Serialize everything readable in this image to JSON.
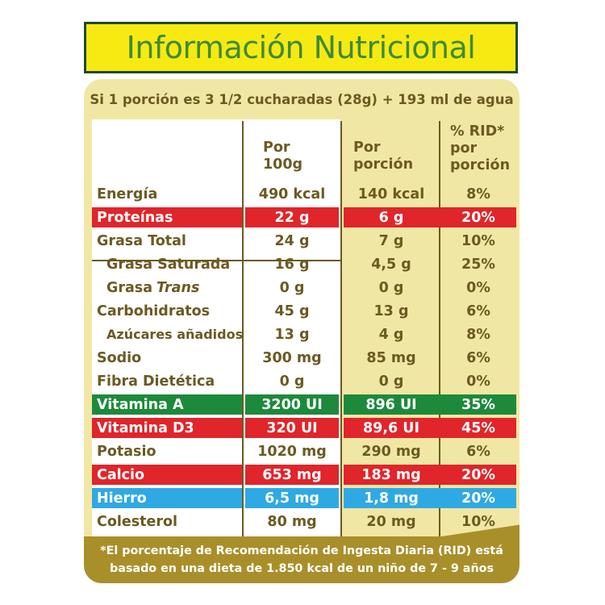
{
  "title": "Información Nutricional",
  "serving": "Si 1 porción es 3 1/2 cucharadas (28g) + 193 ml de agua",
  "headers": {
    "per100_line1": "Por",
    "per100_line2": "100g",
    "perportion_line1": "Por",
    "perportion_line2": "porción",
    "rid_line1": "% RID*",
    "rid_line2": "por",
    "rid_line3": "porción"
  },
  "colors": {
    "red": "#e0252b",
    "green": "#1d8a3b",
    "blue": "#2fa9e3",
    "title_yellow": "#f6ea12",
    "panel": "#f1e7a4",
    "footer": "#a98f2a"
  },
  "rows": [
    {
      "name": "Energía",
      "indent": false,
      "per100": "490 kcal",
      "portion": "140 kcal",
      "rid": "8%",
      "highlight": ""
    },
    {
      "name": "Proteínas",
      "indent": false,
      "per100": "22 g",
      "portion": "6 g",
      "rid": "20%",
      "highlight": "red"
    },
    {
      "name": "Grasa Total",
      "indent": false,
      "per100": "24 g",
      "portion": "7 g",
      "rid": "10%",
      "highlight": ""
    },
    {
      "name": "Grasa Saturada",
      "indent": true,
      "per100": "16 g",
      "portion": "4,5 g",
      "rid": "25%",
      "highlight": ""
    },
    {
      "name": "Grasa ",
      "name_italic": "Trans",
      "indent": true,
      "per100": "0 g",
      "portion": "0 g",
      "rid": "0%",
      "highlight": ""
    },
    {
      "name": "Carbohidratos",
      "indent": false,
      "per100": "45 g",
      "portion": "13 g",
      "rid": "6%",
      "highlight": ""
    },
    {
      "name": "Azúcares añadidos",
      "indent": true,
      "small": true,
      "per100": "13 g",
      "portion": "4 g",
      "rid": "8%",
      "highlight": ""
    },
    {
      "name": "Sodio",
      "indent": false,
      "per100": "300 mg",
      "portion": "85 mg",
      "rid": "6%",
      "highlight": ""
    },
    {
      "name": "Fibra Dietética",
      "indent": false,
      "per100": "0 g",
      "portion": "0 g",
      "rid": "0%",
      "highlight": ""
    },
    {
      "name": "Vitamina A",
      "indent": false,
      "per100": "3200 UI",
      "portion": "896 UI",
      "rid": "35%",
      "highlight": "green"
    },
    {
      "name": "Vitamina D3",
      "indent": false,
      "per100": "320 UI",
      "portion": "89,6 UI",
      "rid": "45%",
      "highlight": "red"
    },
    {
      "name": "Potasio",
      "indent": false,
      "per100": "1020 mg",
      "portion": "290 mg",
      "rid": "6%",
      "highlight": ""
    },
    {
      "name": "Calcio",
      "indent": false,
      "per100": "653 mg",
      "portion": "183 mg",
      "rid": "20%",
      "highlight": "red"
    },
    {
      "name": "Hierro",
      "indent": false,
      "per100": "6,5 mg",
      "portion": "1,8 mg",
      "rid": "20%",
      "highlight": "blue"
    },
    {
      "name": "Colesterol",
      "indent": false,
      "per100": "80 mg",
      "portion": "20 mg",
      "rid": "10%",
      "highlight": ""
    }
  ],
  "footnote_line1": "*El porcentaje de Recomendación de Ingesta Diaria (RID) está",
  "footnote_line2": "basado en una dieta de 1.850 kcal de un niño de 7 - 9 años"
}
